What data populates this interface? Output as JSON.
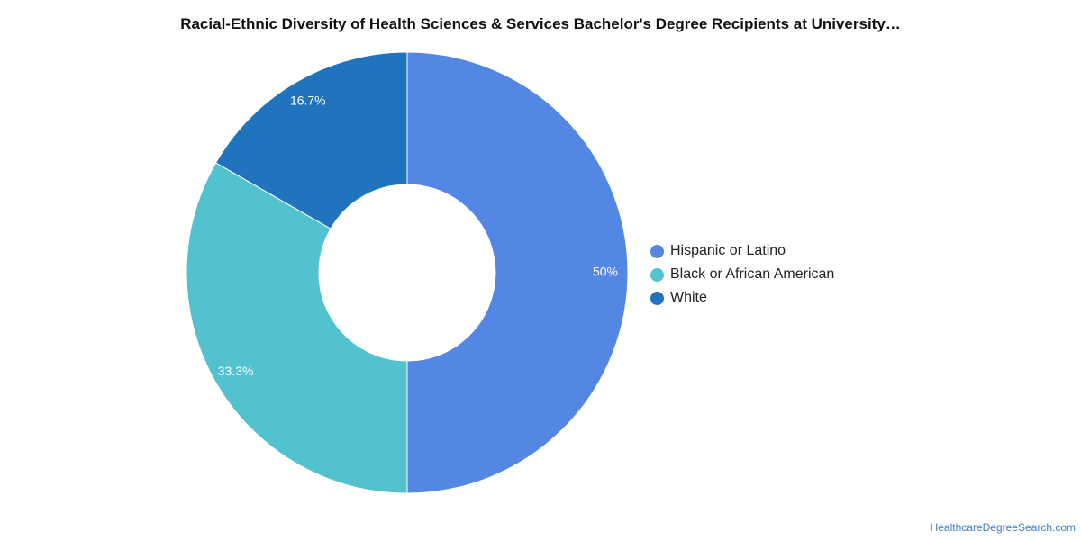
{
  "chart_data": {
    "type": "pie",
    "variant": "donut",
    "title": "Racial-Ethnic Diversity of Health Sciences & Services Bachelor's Degree Recipients at University…",
    "slices": [
      {
        "name": "Hispanic or Latino",
        "value": 50,
        "label": "50%",
        "color": "#5486e3"
      },
      {
        "name": "Black or African American",
        "value": 33.3,
        "label": "33.3%",
        "color": "#52c2cf"
      },
      {
        "name": "White",
        "value": 16.7,
        "label": "16.7%",
        "color": "#1f74bd"
      }
    ],
    "legend_position": "right"
  },
  "source": "HealthcareDegreeSearch.com"
}
